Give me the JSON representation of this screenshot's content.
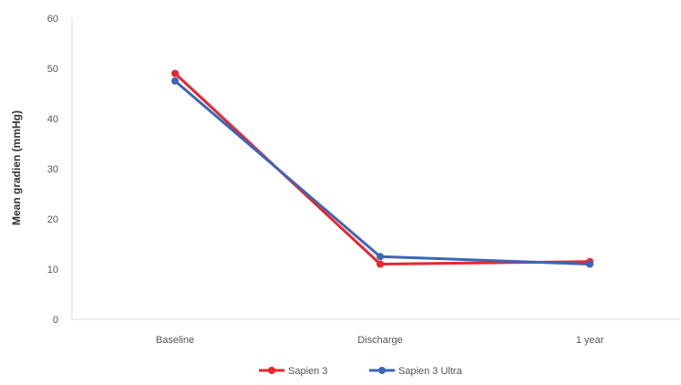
{
  "chart_data": {
    "type": "line",
    "title": "",
    "xlabel": "",
    "ylabel": "Mean gradien (mmHg)",
    "categories": [
      "Baseline",
      "Discharge",
      "1 year"
    ],
    "ylim": [
      0,
      60
    ],
    "yticks": [
      0,
      10,
      20,
      30,
      40,
      50,
      60
    ],
    "grid": false,
    "legend_position": "bottom",
    "series": [
      {
        "name": "Sapien 3",
        "color": "#e8262d",
        "values": [
          49,
          11,
          11.5
        ]
      },
      {
        "name": "Sapien 3 Ultra",
        "color": "#3d64b8",
        "values": [
          47.5,
          12.5,
          11
        ]
      }
    ]
  }
}
